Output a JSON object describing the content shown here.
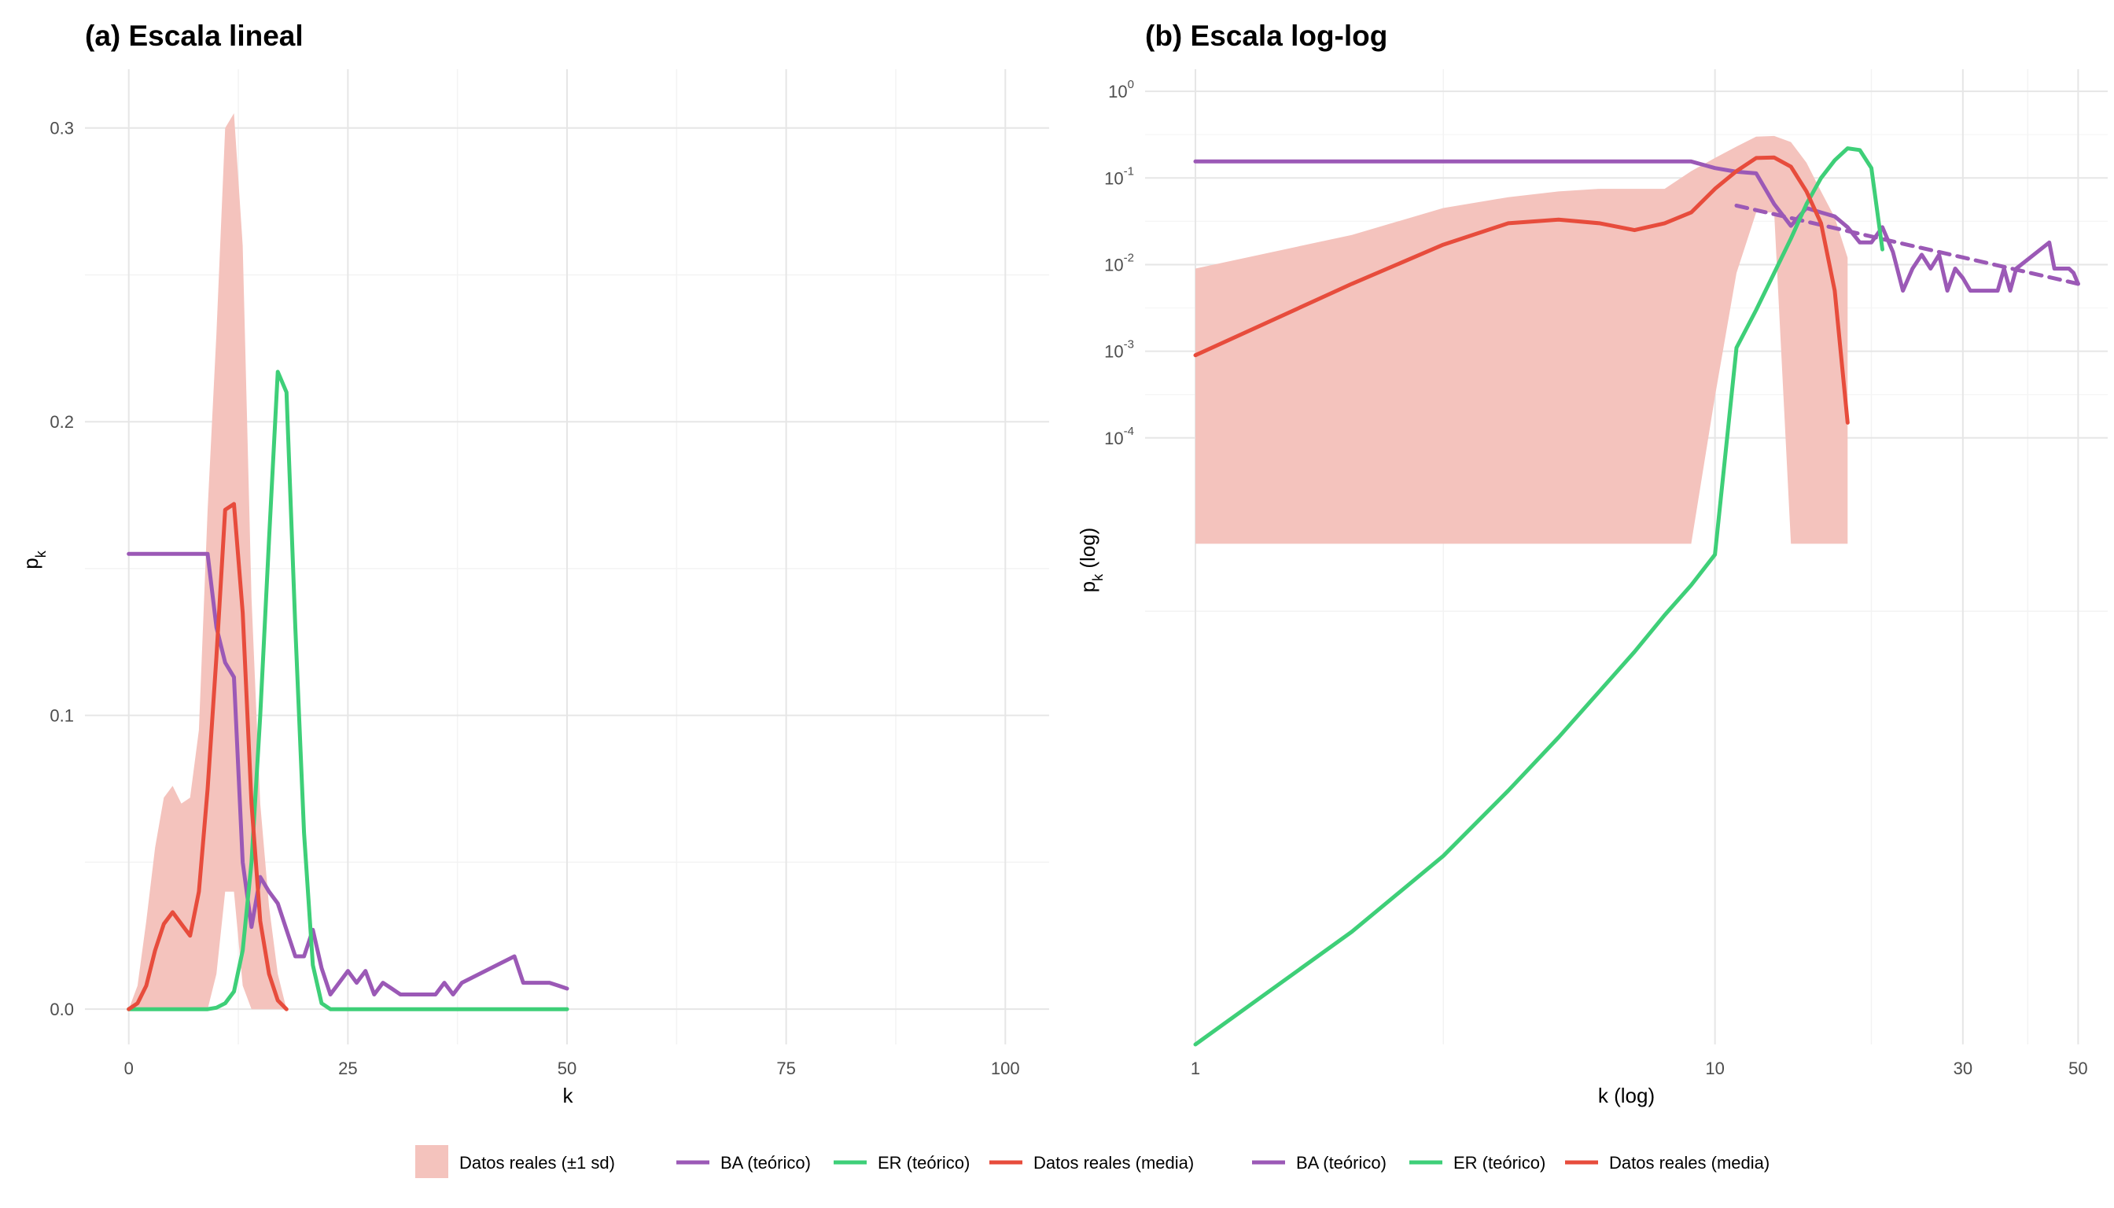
{
  "chart_data": [
    {
      "type": "line",
      "title": "(a) Escala lineal",
      "xlabel": "k",
      "ylabel": "p",
      "ylabel_sub": "k",
      "xlim": [
        -5,
        105
      ],
      "ylim": [
        -0.012,
        0.32
      ],
      "x_ticks": [
        0,
        25,
        50,
        75,
        100
      ],
      "x_tick_labels": [
        "0",
        "25",
        "50",
        "75",
        "100"
      ],
      "y_ticks": [
        0,
        0.1,
        0.2,
        0.3
      ],
      "y_tick_labels": [
        "0.0",
        "0.1",
        "0.2",
        "0.3"
      ],
      "grid": true,
      "ribbon": {
        "name": "Datos reales (±1 sd)",
        "color": "#f4c3bd",
        "x": [
          0,
          1,
          2,
          3,
          4,
          5,
          6,
          7,
          8,
          9,
          10,
          11,
          12,
          13,
          14,
          15,
          16,
          17,
          18
        ],
        "upper": [
          0.0,
          0.008,
          0.03,
          0.055,
          0.072,
          0.076,
          0.07,
          0.072,
          0.095,
          0.17,
          0.23,
          0.3,
          0.305,
          0.26,
          0.14,
          0.07,
          0.035,
          0.012,
          0.0
        ],
        "lower": [
          0.0,
          0.0,
          0.0,
          0.0,
          0.0,
          0.0,
          0.0,
          0.0,
          0.0,
          0.0,
          0.012,
          0.04,
          0.04,
          0.008,
          0.0,
          0.0,
          0.0,
          0.0,
          0.0
        ]
      },
      "series": [
        {
          "name": "BA (teórico)",
          "color": "#9b59b6",
          "x": [
            0,
            9,
            10,
            11,
            12,
            13,
            14,
            15,
            16,
            17,
            18,
            19,
            20,
            21,
            22,
            23,
            24,
            25,
            26,
            27,
            28,
            29,
            30,
            31,
            32,
            33,
            34,
            35,
            36,
            37,
            38,
            44,
            45,
            46,
            47,
            48,
            49,
            50
          ],
          "values": [
            0.155,
            0.155,
            0.13,
            0.118,
            0.113,
            0.05,
            0.028,
            0.045,
            0.04,
            0.036,
            0.027,
            0.018,
            0.018,
            0.027,
            0.014,
            0.005,
            0.009,
            0.013,
            0.009,
            0.013,
            0.005,
            0.009,
            0.007,
            0.005,
            0.005,
            0.005,
            0.005,
            0.005,
            0.009,
            0.005,
            0.009,
            0.018,
            0.009,
            0.009,
            0.009,
            0.009,
            0.008,
            0.007
          ]
        },
        {
          "name": "ER (teórico)",
          "color": "#3ecf78",
          "x": [
            0,
            1,
            2,
            3,
            4,
            5,
            6,
            7,
            8,
            9,
            10,
            11,
            12,
            13,
            14,
            15,
            16,
            17,
            18,
            19,
            20,
            21,
            22,
            23,
            24,
            25,
            30,
            35,
            40,
            45,
            50
          ],
          "values": [
            0,
            0,
            0,
            0,
            0,
            0,
            0,
            0,
            0,
            0,
            0.0005,
            0.002,
            0.006,
            0.02,
            0.05,
            0.1,
            0.16,
            0.217,
            0.21,
            0.13,
            0.06,
            0.015,
            0.002,
            0,
            0,
            0,
            0,
            0,
            0,
            0,
            0
          ]
        },
        {
          "name": "Datos reales (media)",
          "color": "#e74c3c",
          "x": [
            0,
            1,
            2,
            3,
            4,
            5,
            6,
            7,
            8,
            9,
            10,
            11,
            12,
            13,
            14,
            15,
            16,
            17,
            18
          ],
          "values": [
            0.0,
            0.002,
            0.008,
            0.02,
            0.029,
            0.033,
            0.029,
            0.025,
            0.04,
            0.075,
            0.12,
            0.17,
            0.172,
            0.135,
            0.07,
            0.03,
            0.012,
            0.003,
            0.0
          ]
        }
      ]
    },
    {
      "type": "line",
      "title": "(b) Escala log-log",
      "xlabel": "k (log)",
      "ylabel": "p",
      "ylabel_sub": "k",
      "ylabel_suffix": " (log)",
      "x_scale": "log",
      "y_scale": "log",
      "xlim": [
        0.8,
        57
      ],
      "ylim": [
        1e-11,
        1.8
      ],
      "x_ticks": [
        1,
        10,
        30,
        50
      ],
      "x_tick_labels": [
        "1",
        "10",
        "30",
        "50"
      ],
      "x_minor_grid": [
        3,
        20,
        40
      ],
      "y_ticks": [
        1,
        0.1,
        0.01,
        0.001,
        0.0001
      ],
      "y_tick_base": [
        "10",
        "10",
        "10",
        "10",
        "10"
      ],
      "y_tick_exp": [
        "0",
        "-1",
        "-2",
        "-3",
        "-4"
      ],
      "y_minor_grid": [
        1e-06
      ],
      "grid": true,
      "ribbon": {
        "name": "Datos reales (±1 sd)",
        "color": "#f4c3bd",
        "x": [
          1,
          2,
          3,
          4,
          5,
          6,
          7,
          8,
          9,
          10,
          11,
          12,
          13,
          14,
          15,
          16,
          17,
          18
        ],
        "upper": [
          0.009,
          0.022,
          0.045,
          0.06,
          0.07,
          0.075,
          0.075,
          0.075,
          0.12,
          0.17,
          0.23,
          0.3,
          0.305,
          0.26,
          0.15,
          0.07,
          0.035,
          0.012
        ],
        "lower": [
          6e-06,
          6e-06,
          6e-06,
          6e-06,
          6e-06,
          6e-06,
          6e-06,
          6e-06,
          6e-06,
          0.0003,
          0.008,
          0.04,
          0.04,
          6e-06,
          6e-06,
          6e-06,
          6e-06,
          6e-06
        ]
      },
      "series": [
        {
          "name": "BA (teórico)",
          "color": "#9b59b6",
          "x": [
            1,
            9,
            10,
            11,
            12,
            13,
            14,
            15,
            16,
            17,
            18,
            19,
            20,
            21,
            22,
            23,
            24,
            25,
            26,
            27,
            28,
            29,
            30,
            31,
            32,
            33,
            34,
            35,
            36,
            37,
            38,
            44,
            45,
            46,
            47,
            48,
            49,
            50
          ],
          "values": [
            0.155,
            0.155,
            0.13,
            0.118,
            0.113,
            0.05,
            0.028,
            0.045,
            0.04,
            0.036,
            0.027,
            0.018,
            0.018,
            0.027,
            0.014,
            0.005,
            0.009,
            0.013,
            0.009,
            0.013,
            0.005,
            0.009,
            0.007,
            0.005,
            0.005,
            0.005,
            0.005,
            0.005,
            0.009,
            0.005,
            0.009,
            0.018,
            0.009,
            0.009,
            0.009,
            0.009,
            0.008,
            0.006
          ]
        },
        {
          "name": "BA (teórico)",
          "color": "#9b59b6",
          "dashed": true,
          "x": [
            11,
            50
          ],
          "values": [
            0.048,
            0.006
          ]
        },
        {
          "name": "ER (teórico)",
          "color": "#3ecf78",
          "x": [
            1,
            2,
            3,
            4,
            5,
            6,
            7,
            8,
            9,
            10,
            11,
            12,
            13,
            14,
            15,
            16,
            17,
            18,
            19,
            20,
            21
          ],
          "values": [
            1e-11,
            2e-10,
            1.5e-09,
            8.5e-09,
            3.5e-08,
            1.2e-07,
            3.4e-07,
            9e-07,
            2e-06,
            4.5e-06,
            0.0011,
            0.003,
            0.008,
            0.02,
            0.05,
            0.1,
            0.16,
            0.22,
            0.21,
            0.13,
            0.015
          ]
        },
        {
          "name": "Datos reales (media)",
          "color": "#e74c3c",
          "x": [
            1,
            2,
            3,
            4,
            5,
            6,
            7,
            8,
            9,
            10,
            11,
            12,
            13,
            14,
            15,
            16,
            17,
            18
          ],
          "values": [
            0.0009,
            0.006,
            0.017,
            0.03,
            0.033,
            0.03,
            0.025,
            0.03,
            0.04,
            0.075,
            0.12,
            0.17,
            0.172,
            0.135,
            0.07,
            0.03,
            0.005,
            0.00015
          ]
        }
      ]
    }
  ],
  "legend": {
    "position": "bottom",
    "items": [
      {
        "label": "Datos reales (±1 sd)",
        "kind": "fill",
        "color": "#f4c3bd"
      },
      {
        "label": "BA (teórico)",
        "kind": "line",
        "color": "#9b59b6"
      },
      {
        "label": "ER (teórico)",
        "kind": "line",
        "color": "#3ecf78"
      },
      {
        "label": "Datos reales (media)",
        "kind": "line",
        "color": "#e74c3c"
      },
      {
        "label": "BA (teórico)",
        "kind": "line",
        "color": "#9b59b6"
      },
      {
        "label": "ER (teórico)",
        "kind": "line",
        "color": "#3ecf78"
      },
      {
        "label": "Datos reales (media)",
        "kind": "line",
        "color": "#e74c3c"
      }
    ]
  }
}
